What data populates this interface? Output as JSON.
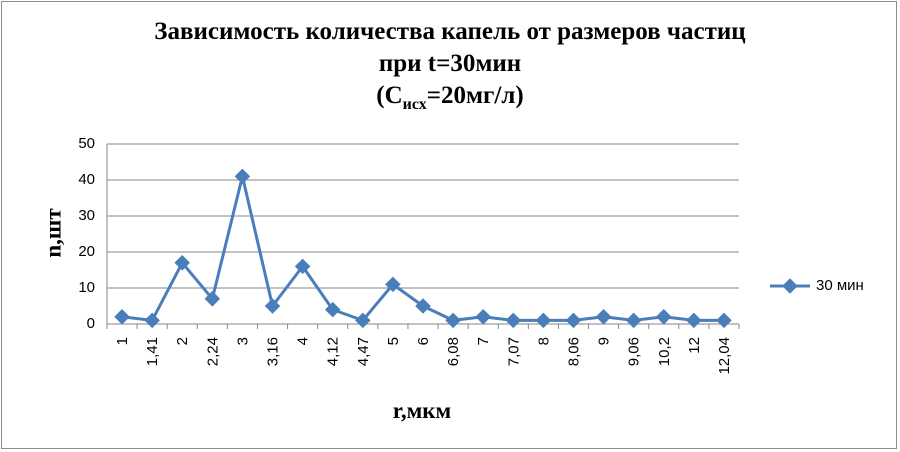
{
  "chart_data": {
    "type": "line",
    "title_line1": "Зависимость количества капель от размеров частиц",
    "title_line2": "при t=30мин",
    "title_line3_prefix": "(C",
    "title_line3_sub": "исх",
    "title_line3_suffix": "=20мг/л)",
    "xlabel": "r,мкм",
    "ylabel": "n,шт",
    "ylim": [
      0,
      50
    ],
    "yticks": [
      0,
      10,
      20,
      30,
      40,
      50
    ],
    "grid": true,
    "legend_position": "right",
    "categories": [
      "1",
      "1,41",
      "2",
      "2,24",
      "3",
      "3,16",
      "4",
      "4,12",
      "4,47",
      "5",
      "6",
      "6,08",
      "7",
      "7,07",
      "8",
      "8,06",
      "9",
      "9,06",
      "10,2",
      "12",
      "12,04"
    ],
    "series": [
      {
        "name": "30 мин",
        "color": "#4a7ebb",
        "marker": "diamond",
        "values": [
          2,
          1,
          17,
          7,
          41,
          5,
          16,
          4,
          1,
          11,
          5,
          1,
          2,
          1,
          1,
          1,
          2,
          1,
          2,
          1,
          1
        ]
      }
    ]
  }
}
